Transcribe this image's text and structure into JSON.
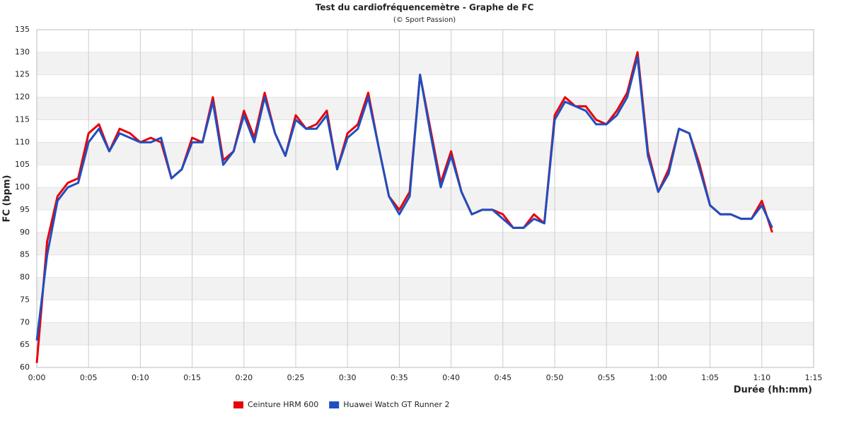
{
  "chart_data": {
    "type": "line",
    "title": "Test du cardiofréquencemètre - Graphe de FC",
    "subtitle": "(© Sport Passion)",
    "x_label": "Durée (hh:mm)",
    "y_label": "FC (bpm)",
    "x": [
      0,
      1,
      2,
      3,
      4,
      5,
      6,
      7,
      8,
      9,
      10,
      11,
      12,
      13,
      14,
      15,
      16,
      17,
      18,
      19,
      20,
      21,
      22,
      23,
      24,
      25,
      26,
      27,
      28,
      29,
      30,
      31,
      32,
      33,
      34,
      35,
      36,
      37,
      38,
      39,
      40,
      41,
      42,
      43,
      44,
      45,
      46,
      47,
      48,
      49,
      50,
      51,
      52,
      53,
      54,
      55,
      56,
      57,
      58,
      59,
      60,
      61,
      62,
      63,
      64,
      65,
      66,
      67,
      68,
      69,
      70,
      71
    ],
    "series": [
      {
        "name": "Ceinture HRM 600",
        "color": "#e8000b",
        "values": [
          61,
          88,
          98,
          101,
          102,
          112,
          114,
          108,
          113,
          112,
          110,
          111,
          110,
          102,
          104,
          111,
          110,
          120,
          106,
          108,
          117,
          111,
          121,
          112,
          107,
          116,
          113,
          114,
          117,
          104,
          112,
          114,
          121,
          109,
          98,
          95,
          99,
          125,
          113,
          101,
          108,
          99,
          94,
          95,
          95,
          94,
          91,
          91,
          94,
          92,
          116,
          120,
          118,
          118,
          115,
          114,
          117,
          121,
          130,
          108,
          99,
          104,
          113,
          112,
          105,
          96,
          94,
          94,
          93,
          93,
          97,
          90
        ]
      },
      {
        "name": "Huawei Watch GT Runner 2",
        "color": "#1f4fbf",
        "values": [
          66,
          85,
          97,
          100,
          101,
          110,
          113,
          108,
          112,
          111,
          110,
          110,
          111,
          102,
          104,
          110,
          110,
          119,
          105,
          108,
          116,
          110,
          120,
          112,
          107,
          115,
          113,
          113,
          116,
          104,
          111,
          113,
          120,
          109,
          98,
          94,
          98,
          125,
          112,
          100,
          107,
          99,
          94,
          95,
          95,
          93,
          91,
          91,
          93,
          92,
          115,
          119,
          118,
          117,
          114,
          114,
          116,
          120,
          129,
          107,
          99,
          103,
          113,
          112,
          104,
          96,
          94,
          94,
          93,
          93,
          96,
          91
        ]
      }
    ],
    "xlim": [
      0,
      75
    ],
    "xticks": [
      {
        "value": 0,
        "label": "0:00"
      },
      {
        "value": 5,
        "label": "0:05"
      },
      {
        "value": 10,
        "label": "0:10"
      },
      {
        "value": 15,
        "label": "0:15"
      },
      {
        "value": 20,
        "label": "0:20"
      },
      {
        "value": 25,
        "label": "0:25"
      },
      {
        "value": 30,
        "label": "0:30"
      },
      {
        "value": 35,
        "label": "0:35"
      },
      {
        "value": 40,
        "label": "0:40"
      },
      {
        "value": 45,
        "label": "0:45"
      },
      {
        "value": 50,
        "label": "0:50"
      },
      {
        "value": 55,
        "label": "0:55"
      },
      {
        "value": 60,
        "label": "1:00"
      },
      {
        "value": 65,
        "label": "1:05"
      },
      {
        "value": 70,
        "label": "1:10"
      },
      {
        "value": 75,
        "label": "1:15"
      }
    ],
    "ylim": [
      60,
      135
    ],
    "yticks": [
      60,
      65,
      70,
      75,
      80,
      85,
      90,
      95,
      100,
      105,
      110,
      115,
      120,
      125,
      130,
      135
    ],
    "grid": true,
    "legend": "bottom"
  }
}
